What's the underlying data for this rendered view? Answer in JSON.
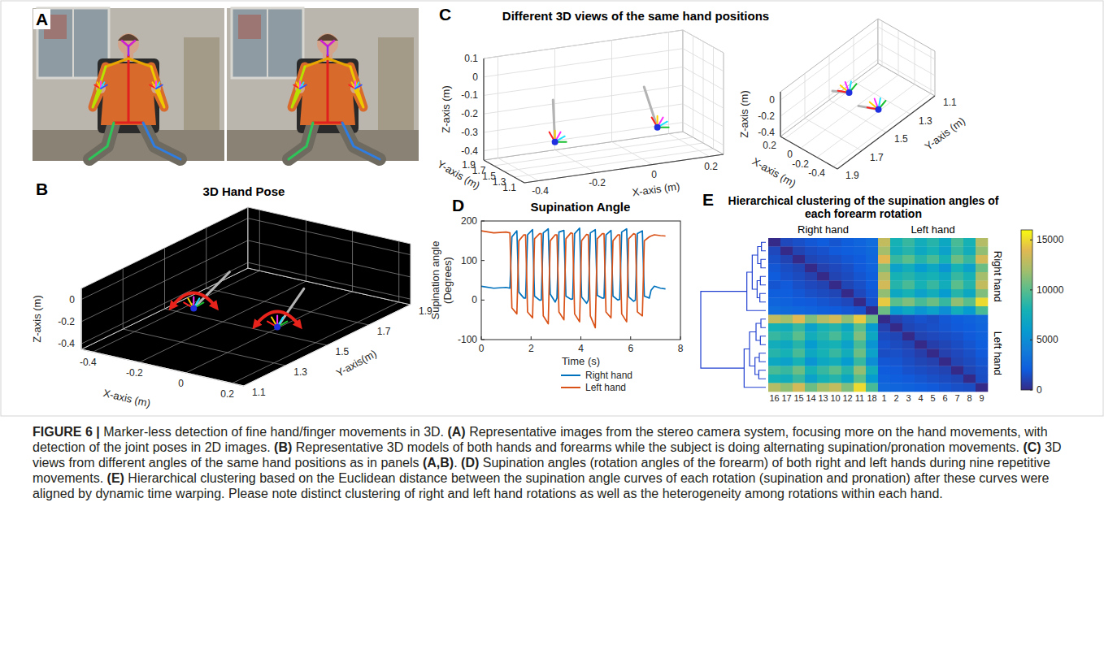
{
  "panel_a": {
    "panel_label": "A"
  },
  "panel_b": {
    "panel_label": "B",
    "title": "3D Hand Pose",
    "x_label": "X-axis (m)",
    "y_label": "Y-axis(m)",
    "z_label": "Z-axis (m)",
    "xlim": [
      -0.45,
      0.25
    ],
    "ylim": [
      1.1,
      1.9
    ],
    "zlim": [
      -0.45,
      0.1
    ],
    "xticks": [
      -0.4,
      -0.2,
      0,
      0.2
    ],
    "yticks": [
      1.1,
      1.3,
      1.5,
      1.7,
      1.9
    ],
    "zticks": [
      -0.4,
      -0.2,
      0
    ]
  },
  "panel_c": {
    "panel_label": "C",
    "title": "Different 3D views of the same hand positions",
    "views": [
      {
        "x_label": "X-axis (m)",
        "y_label": "Y-axis (m)",
        "z_label": "Z-axis (m)",
        "xlim": [
          -0.45,
          0.25
        ],
        "ylim": [
          1.1,
          1.9
        ],
        "zlim": [
          -0.45,
          0.1
        ],
        "xticks": [
          -0.4,
          -0.2,
          0,
          0.2
        ],
        "yticks": [
          1.9,
          1.7,
          1.5,
          1.3,
          1.1
        ],
        "zticks": [
          0.1,
          0,
          -0.1,
          -0.2,
          -0.3,
          -0.4
        ]
      },
      {
        "x_label": "X-axis (m)",
        "y_label": "Y-axis (m)",
        "z_label": "Z-axis (m)",
        "xlim": [
          -0.45,
          0.25
        ],
        "ylim": [
          1.1,
          1.9
        ],
        "zlim": [
          -0.45,
          0.1
        ],
        "xticks": [
          0.2,
          0,
          -0.2,
          -0.4
        ],
        "yticks": [
          1.1,
          1.3,
          1.5,
          1.7,
          1.9
        ],
        "zticks": [
          0,
          -0.2,
          -0.4
        ]
      }
    ]
  },
  "hand_positions": [
    {
      "wrist": [
        -0.28,
        1.45,
        -0.32
      ],
      "elbow": [
        -0.26,
        1.6,
        -0.12
      ]
    },
    {
      "wrist": [
        0.08,
        1.45,
        -0.32
      ],
      "elbow": [
        0.06,
        1.6,
        -0.12
      ]
    }
  ],
  "chart_data": [
    {
      "type": "line",
      "panel_label": "D",
      "title": "Supination Angle",
      "x_label": "Time (s)",
      "y_label": "Supination angle (Degrees)",
      "x": [
        0,
        0.5,
        1.0,
        1.15,
        1.23,
        1.43,
        1.51,
        1.71,
        1.78,
        1.86,
        2.06,
        2.14,
        2.34,
        2.41,
        2.49,
        2.69,
        2.77,
        2.97,
        3.04,
        3.12,
        3.32,
        3.4,
        3.6,
        3.67,
        3.75,
        3.95,
        4.03,
        4.23,
        4.3,
        4.38,
        4.58,
        4.66,
        4.86,
        4.93,
        5.01,
        5.21,
        5.29,
        5.49,
        5.56,
        5.64,
        5.84,
        5.92,
        6.12,
        6.19,
        6.27,
        6.47,
        6.55,
        6.75,
        6.82,
        6.95,
        7.2,
        7.4
      ],
      "series": [
        {
          "name": "Right hand",
          "color": "#0072bd",
          "values": [
            35,
            30,
            32,
            30,
            160,
            175,
            20,
            5,
            5,
            165,
            178,
            10,
            0,
            0,
            170,
            180,
            15,
            -5,
            5,
            172,
            176,
            10,
            2,
            3,
            168,
            182,
            8,
            -8,
            0,
            170,
            178,
            12,
            5,
            5,
            165,
            176,
            10,
            0,
            2,
            172,
            180,
            8,
            -3,
            0,
            168,
            175,
            10,
            5,
            25,
            35,
            30,
            28
          ]
        },
        {
          "name": "Left hand",
          "color": "#d95319",
          "values": [
            175,
            170,
            172,
            170,
            -20,
            -35,
            150,
            165,
            165,
            -30,
            -45,
            155,
            168,
            168,
            -40,
            -60,
            150,
            165,
            165,
            -30,
            -50,
            155,
            170,
            168,
            -35,
            -55,
            150,
            166,
            165,
            -40,
            -70,
            155,
            168,
            168,
            -30,
            -45,
            150,
            165,
            165,
            -35,
            -55,
            155,
            168,
            166,
            -30,
            -40,
            150,
            160,
            162,
            165,
            163,
            162
          ]
        }
      ],
      "xlim": [
        0,
        8
      ],
      "ylim": [
        -100,
        200
      ],
      "xticks": [
        0,
        2,
        4,
        6,
        8
      ],
      "yticks": [
        -100,
        0,
        100,
        200
      ],
      "legend": "bottom"
    },
    {
      "type": "heatmap",
      "panel_label": "E",
      "title": "Hierarchical clustering of the supination angles of each forearm rotation",
      "column_groups": [
        "Right hand",
        "Left hand"
      ],
      "row_groups": [
        "Right hand",
        "Left hand"
      ],
      "categories": [
        "16",
        "17",
        "15",
        "14",
        "13",
        "10",
        "12",
        "11",
        "18",
        "1",
        "2",
        "3",
        "4",
        "5",
        "6",
        "7",
        "8",
        "9"
      ],
      "cells": [
        [
          0,
          1200,
          1500,
          1800,
          2000,
          1700,
          2200,
          2500,
          3000,
          13000,
          8000,
          9000,
          7500,
          8500,
          7000,
          9500,
          8000,
          12500
        ],
        [
          1200,
          0,
          1000,
          1400,
          1600,
          1900,
          2100,
          2300,
          2800,
          12000,
          7500,
          8500,
          7000,
          8000,
          6500,
          9000,
          7500,
          11500
        ],
        [
          1500,
          1000,
          0,
          1100,
          1300,
          1500,
          1800,
          2000,
          2600,
          14000,
          9000,
          10000,
          8500,
          9500,
          8000,
          10500,
          9000,
          13500
        ],
        [
          1800,
          1400,
          1100,
          0,
          900,
          1200,
          1500,
          1900,
          2400,
          11000,
          6500,
          7500,
          6000,
          7000,
          5500,
          8000,
          6500,
          10500
        ],
        [
          2000,
          1600,
          1300,
          900,
          0,
          1000,
          1300,
          1700,
          2200,
          12500,
          8000,
          8500,
          7500,
          8000,
          7000,
          9000,
          8000,
          12000
        ],
        [
          1700,
          1900,
          1500,
          1200,
          1000,
          0,
          1100,
          1500,
          2000,
          13500,
          8500,
          9500,
          8000,
          9000,
          7500,
          10000,
          8500,
          13000
        ],
        [
          2200,
          2100,
          1800,
          1500,
          1300,
          1100,
          0,
          1200,
          1800,
          11500,
          7000,
          8000,
          6500,
          7500,
          6000,
          8500,
          7000,
          11000
        ],
        [
          2500,
          2300,
          2000,
          1900,
          1700,
          1500,
          1200,
          0,
          1600,
          14500,
          10000,
          11000,
          9500,
          10500,
          9000,
          11500,
          10000,
          15000
        ],
        [
          3000,
          2800,
          2600,
          2400,
          2200,
          2000,
          1800,
          1600,
          0,
          10500,
          6000,
          7000,
          5500,
          6500,
          5000,
          7500,
          6000,
          9500
        ],
        [
          13000,
          12000,
          14000,
          11000,
          12500,
          13500,
          11500,
          14500,
          10500,
          0,
          900,
          1300,
          1600,
          1400,
          1800,
          2000,
          2300,
          2700
        ],
        [
          8000,
          7500,
          9000,
          6500,
          8000,
          8500,
          7000,
          10000,
          6000,
          900,
          0,
          1100,
          1300,
          1500,
          1700,
          1900,
          2100,
          2500
        ],
        [
          9000,
          8500,
          10000,
          7500,
          8500,
          9500,
          8000,
          11000,
          7000,
          1300,
          1100,
          0,
          1000,
          1200,
          1400,
          1600,
          1900,
          2300
        ],
        [
          7500,
          7000,
          8500,
          6000,
          7500,
          8000,
          6500,
          9500,
          5500,
          1600,
          1300,
          1000,
          0,
          800,
          1100,
          1400,
          1700,
          2100
        ],
        [
          8500,
          8000,
          9500,
          7000,
          8000,
          9000,
          7500,
          10500,
          6500,
          1400,
          1500,
          1200,
          800,
          0,
          900,
          1200,
          1500,
          1900
        ],
        [
          7000,
          6500,
          8000,
          5500,
          7000,
          7500,
          6000,
          9000,
          5000,
          1800,
          1700,
          1400,
          1100,
          900,
          0,
          1000,
          1300,
          1700
        ],
        [
          9500,
          9000,
          10500,
          8000,
          9000,
          10000,
          8500,
          11500,
          7500,
          2000,
          1900,
          1600,
          1400,
          1200,
          1000,
          0,
          1100,
          1500
        ],
        [
          8000,
          7500,
          9000,
          6500,
          8000,
          8500,
          7000,
          10000,
          6000,
          2300,
          2100,
          1900,
          1700,
          1500,
          1300,
          1100,
          0,
          1400
        ],
        [
          12500,
          11500,
          13500,
          10500,
          12000,
          13000,
          11000,
          15000,
          9500,
          2700,
          2500,
          2300,
          2100,
          1900,
          1700,
          1500,
          1400,
          0
        ]
      ],
      "colorbar": {
        "range": [
          0,
          16000
        ],
        "ticks": [
          0,
          5000,
          10000,
          15000
        ]
      },
      "dendrogram": [
        [
          0,
          1,
          800
        ],
        [
          2,
          3,
          900
        ],
        [
          4,
          5,
          1000
        ],
        [
          6,
          7,
          1100
        ],
        [
          18,
          19,
          1500
        ],
        [
          20,
          21,
          1600
        ],
        [
          22,
          23,
          2500
        ],
        [
          24,
          8,
          3500
        ],
        [
          9,
          10,
          900
        ],
        [
          11,
          12,
          1000
        ],
        [
          13,
          14,
          1200
        ],
        [
          15,
          16,
          1300
        ],
        [
          26,
          27,
          1800
        ],
        [
          28,
          29,
          2000
        ],
        [
          30,
          31,
          3000
        ],
        [
          32,
          17,
          4000
        ],
        [
          25,
          33,
          12000
        ]
      ]
    }
  ],
  "caption": [
    {
      "text": "FIGURE 6 |",
      "bold": true
    },
    {
      "text": " Marker-less detection of fine hand/finger movements in 3D. ",
      "bold": false
    },
    {
      "text": "(A)",
      "bold": true
    },
    {
      "text": " Representative images from the stereo camera system, focusing more on the hand movements, with detection of the joint poses in 2D images. ",
      "bold": false
    },
    {
      "text": "(B)",
      "bold": true
    },
    {
      "text": " Representative 3D models of both hands and forearms while the subject is doing alternating supination/pronation movements. ",
      "bold": false
    },
    {
      "text": "(C)",
      "bold": true
    },
    {
      "text": " 3D views from different angles of the same hand positions as in panels ",
      "bold": false
    },
    {
      "text": "(A,B)",
      "bold": true
    },
    {
      "text": ". ",
      "bold": false
    },
    {
      "text": "(D)",
      "bold": true
    },
    {
      "text": " Supination angles (rotation angles of the forearm) of both right and left hands during nine repetitive movements. ",
      "bold": false
    },
    {
      "text": "(E)",
      "bold": true
    },
    {
      "text": " Hierarchical clustering based on the Euclidean distance between the supination angle curves of each rotation (supination and pronation) after these curves were aligned by dynamic time warping. Please note distinct clustering of right and left hand rotations as well as the heterogeneity among rotations within each hand.",
      "bold": false
    }
  ]
}
